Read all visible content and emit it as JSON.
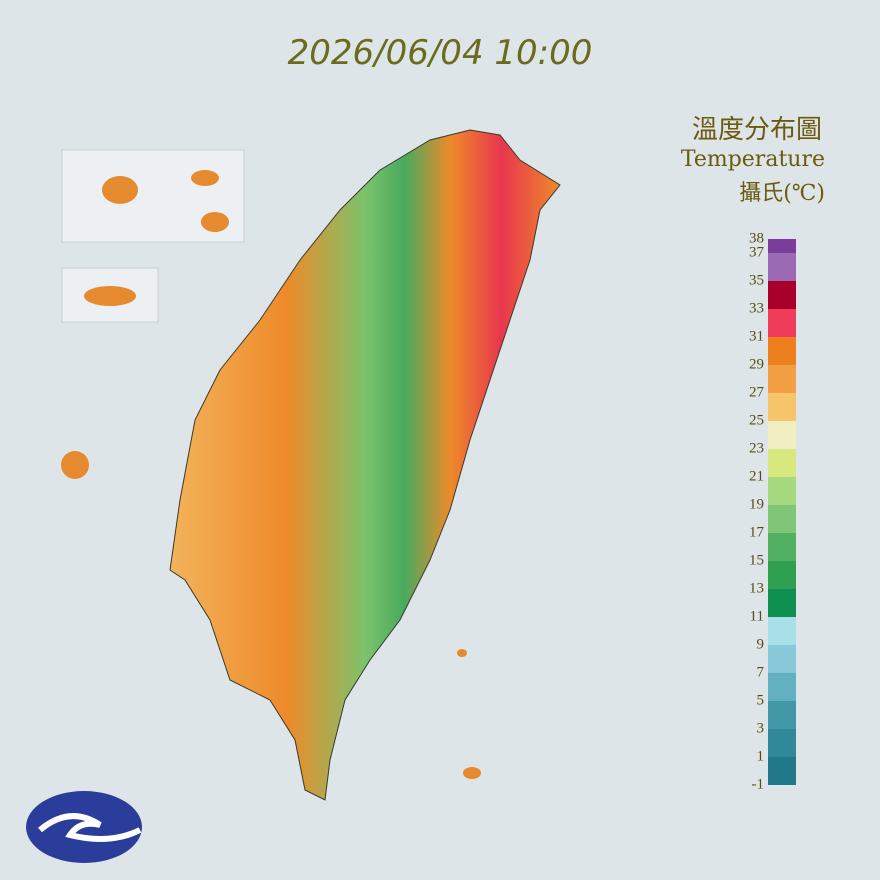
{
  "title": "2026/06/04 10:00",
  "legend": {
    "title_zh": "溫度分布圖",
    "title_en": "Temperature",
    "unit": "攝氏(℃)",
    "ticks": [
      38,
      37,
      35,
      33,
      31,
      29,
      27,
      25,
      23,
      21,
      19,
      17,
      15,
      13,
      11,
      9,
      7,
      5,
      3,
      1,
      -1
    ],
    "colors": [
      "#7b3d9a",
      "#9c6ab5",
      "#a8002a",
      "#f03c5a",
      "#ee7f1e",
      "#f3a044",
      "#f6c46a",
      "#f1efc2",
      "#d6e87e",
      "#a6d97e",
      "#7fc777",
      "#52b062",
      "#2fa050",
      "#109050",
      "#a8e0e8",
      "#88c8d8",
      "#62b0c0",
      "#4398a8",
      "#308898",
      "#207888"
    ]
  }
}
